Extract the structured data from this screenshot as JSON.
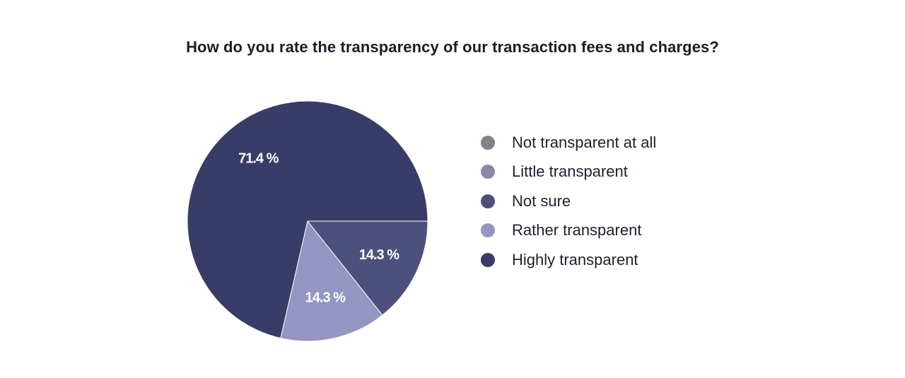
{
  "chart_data": {
    "type": "pie",
    "title": "How do you rate the transparency of our transaction fees and charges?",
    "legend_position": "right",
    "categories": [
      "Not transparent at all",
      "Little transparent",
      "Not sure",
      "Rather transparent",
      "Highly transparent"
    ],
    "values": [
      0,
      0,
      14.3,
      14.3,
      71.4
    ],
    "labels": [
      "",
      "",
      "14.3 %",
      "14.3 %",
      "71.4 %"
    ],
    "colors": [
      "#858088",
      "#8a88a7",
      "#4d4f7c",
      "#9595c1",
      "#393c67"
    ]
  }
}
